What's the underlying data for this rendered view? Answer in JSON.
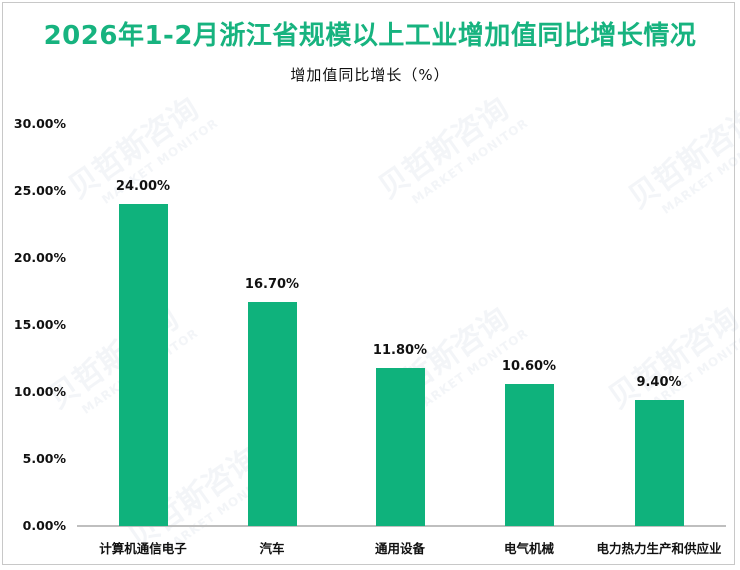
{
  "title": "2026年1-2月浙江省规模以上工业增加值同比增长情况",
  "subtitle": "增加值同比增长（%）",
  "watermark": {
    "cn": "贝哲斯咨询",
    "en": "MARKET MONITOR"
  },
  "colors": {
    "bar": "#0fb27c",
    "title": "#17b37f",
    "axis": "#bfbfbf"
  },
  "yaxis": {
    "ticks": [
      "30.00%",
      "25.00%",
      "20.00%",
      "15.00%",
      "10.00%",
      "5.00%",
      "0.00%"
    ]
  },
  "bars": [
    {
      "category": "计算机通信电子",
      "value": 24.0,
      "label": "24.00%"
    },
    {
      "category": "汽车",
      "value": 16.7,
      "label": "16.70%"
    },
    {
      "category": "通用设备",
      "value": 11.8,
      "label": "11.80%"
    },
    {
      "category": "电气机械",
      "value": 10.6,
      "label": "10.60%"
    },
    {
      "category": "电力热力生产和供应业",
      "value": 9.4,
      "label": "9.40%"
    }
  ],
  "chart_data": {
    "type": "bar",
    "title": "2026年1-2月浙江省规模以上工业增加值同比增长情况",
    "subtitle": "增加值同比增长（%）",
    "categories": [
      "计算机通信电子",
      "汽车",
      "通用设备",
      "电气机械",
      "电力热力生产和供应业"
    ],
    "values": [
      24.0,
      16.7,
      11.8,
      10.6,
      9.4
    ],
    "data_labels": [
      "24.00%",
      "16.70%",
      "11.80%",
      "10.60%",
      "9.40%"
    ],
    "xlabel": "",
    "ylabel": "增加值同比增长（%）",
    "ylim": [
      0,
      30
    ],
    "yticks": [
      "0.00%",
      "5.00%",
      "10.00%",
      "15.00%",
      "20.00%",
      "25.00%",
      "30.00%"
    ],
    "grid": false,
    "legend": "none"
  }
}
